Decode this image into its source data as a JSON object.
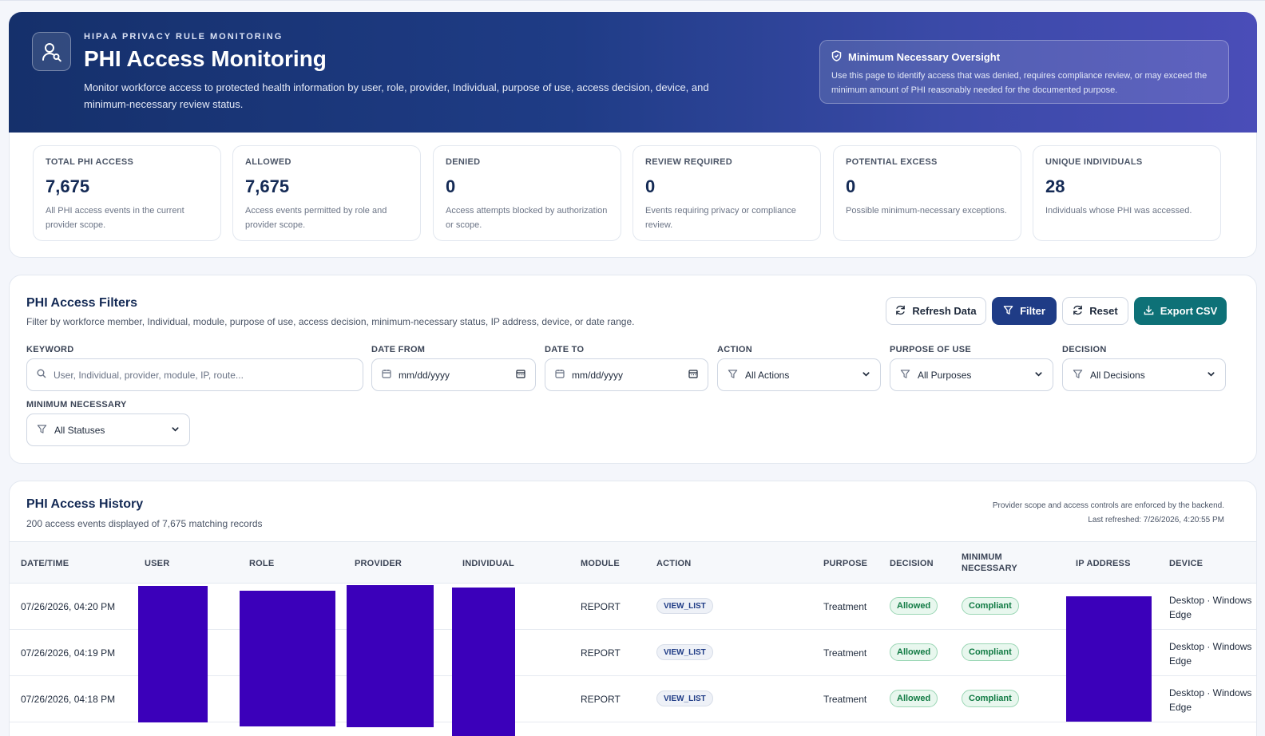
{
  "hero": {
    "eyebrow": "HIPAA PRIVACY RULE MONITORING",
    "title": "PHI Access Monitoring",
    "description": "Monitor workforce access to protected health information by user, role, provider, Individual, purpose of use, access decision, device, and minimum-necessary review status.",
    "oversight_title": "Minimum Necessary Oversight",
    "oversight_text": "Use this page to identify access that was denied, requires compliance review, or may exceed the minimum amount of PHI reasonably needed for the documented purpose.",
    "icon": "user-search-icon",
    "oversight_icon": "shield-icon"
  },
  "stats": [
    {
      "label": "TOTAL PHI ACCESS",
      "value": "7,675",
      "desc": "All PHI access events in the current provider scope."
    },
    {
      "label": "ALLOWED",
      "value": "7,675",
      "desc": "Access events permitted by role and provider scope."
    },
    {
      "label": "DENIED",
      "value": "0",
      "desc": "Access attempts blocked by authorization or scope."
    },
    {
      "label": "REVIEW REQUIRED",
      "value": "0",
      "desc": "Events requiring privacy or compliance review."
    },
    {
      "label": "POTENTIAL EXCESS",
      "value": "0",
      "desc": "Possible minimum-necessary exceptions."
    },
    {
      "label": "UNIQUE INDIVIDUALS",
      "value": "28",
      "desc": "Individuals whose PHI was accessed."
    }
  ],
  "filters": {
    "title": "PHI Access Filters",
    "subtitle": "Filter by workforce member, Individual, module, purpose of use, access decision, minimum-necessary status, IP address, device, or date range.",
    "buttons": {
      "refresh": "Refresh Data",
      "filter": "Filter",
      "reset": "Reset",
      "export": "Export CSV"
    },
    "keyword_label": "KEYWORD",
    "keyword_placeholder": "User, Individual, provider, module, IP, route...",
    "date_from_label": "DATE FROM",
    "date_from_placeholder": "mm/dd/yyyy",
    "date_to_label": "DATE TO",
    "date_to_placeholder": "mm/dd/yyyy",
    "action_label": "ACTION",
    "action_value": "All Actions",
    "purpose_label": "PURPOSE OF USE",
    "purpose_value": "All Purposes",
    "decision_label": "DECISION",
    "decision_value": "All Decisions",
    "minimum_label": "MINIMUM NECESSARY",
    "minimum_value": "All Statuses"
  },
  "history": {
    "title": "PHI Access History",
    "subtitle": "200 access events displayed of 7,675 matching records",
    "note": "Provider scope and access controls are enforced by the backend.",
    "refreshed": "Last refreshed: 7/26/2026, 4:20:55 PM",
    "columns": {
      "datetime": "DATE/TIME",
      "user": "USER",
      "role": "ROLE",
      "provider": "PROVIDER",
      "individual": "INDIVIDUAL",
      "module": "MODULE",
      "action": "ACTION",
      "purpose": "PURPOSE",
      "decision": "DECISION",
      "minimum_1": "MINIMUM",
      "minimum_2": "NECESSARY",
      "ip": "IP ADDRESS",
      "device": "DEVICE"
    },
    "rows": [
      {
        "datetime": "07/26/2026, 04:20 PM",
        "module": "REPORT",
        "action": "VIEW_LIST",
        "purpose": "Treatment",
        "decision": "Allowed",
        "minimum": "Compliant",
        "device_1": "Desktop · Windows",
        "device_2": "Edge"
      },
      {
        "datetime": "07/26/2026, 04:19 PM",
        "module": "REPORT",
        "action": "VIEW_LIST",
        "purpose": "Treatment",
        "decision": "Allowed",
        "minimum": "Compliant",
        "device_1": "Desktop · Windows",
        "device_2": "Edge"
      },
      {
        "datetime": "07/26/2026, 04:18 PM",
        "module": "REPORT",
        "action": "VIEW_LIST",
        "purpose": "Treatment",
        "decision": "Allowed",
        "minimum": "Compliant",
        "device_1": "Desktop · Windows",
        "device_2": "Edge"
      }
    ]
  },
  "colors": {
    "hero_start": "#15306b",
    "hero_end": "#4a4db8",
    "primary": "#1f3c86",
    "teal": "#0e7177",
    "redaction": "#3b00ba",
    "success": "#107a43"
  }
}
